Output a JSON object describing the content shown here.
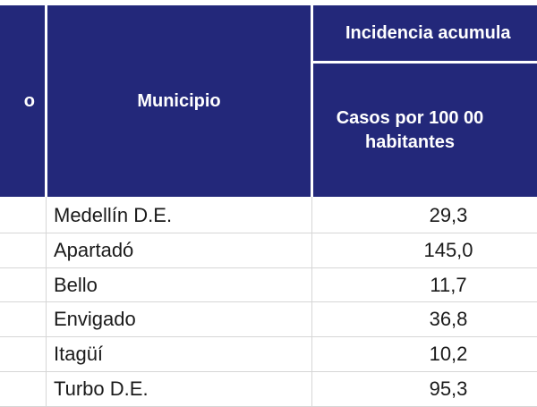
{
  "table": {
    "headers": {
      "left_fragment": "o",
      "municipio": "Municipio",
      "incidencia": "Incidencia acumula",
      "casos_line1": "Casos por 100 00",
      "casos_line2": "habitantes"
    },
    "rows": [
      {
        "municipio": "Medellín D.E.",
        "casos": "29,3"
      },
      {
        "municipio": "Apartadó",
        "casos": "145,0"
      },
      {
        "municipio": "Bello",
        "casos": "11,7"
      },
      {
        "municipio": "Envigado",
        "casos": "36,8"
      },
      {
        "municipio": "Itagüí",
        "casos": "10,2"
      },
      {
        "municipio": "Turbo D.E.",
        "casos": "95,3"
      }
    ]
  },
  "colors": {
    "header_bg": "#23287a",
    "header_text": "#ffffff",
    "grid": "#d6d6d6"
  }
}
